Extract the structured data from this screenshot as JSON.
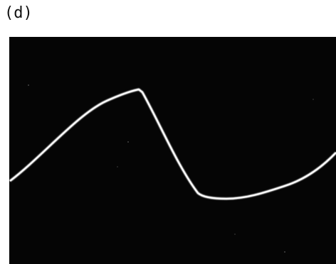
{
  "label": "(d)"
}
